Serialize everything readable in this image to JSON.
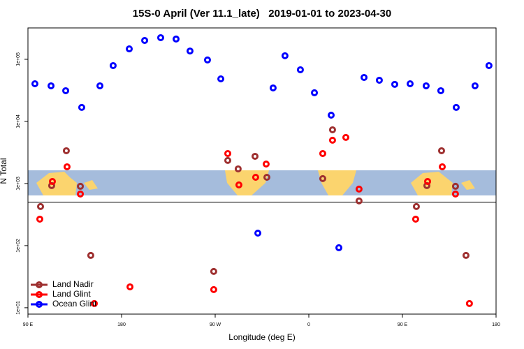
{
  "chart_data": {
    "type": "scatter",
    "title": "15S-0 April (Ver 11.1_late)   2019-01-01 to 2023-04-30",
    "x_label": "Longitude (deg E)",
    "y_label": "N Total",
    "xlim": [
      90,
      540
    ],
    "xticks": [
      {
        "value": 90,
        "label": "90 E"
      },
      180,
      {
        "value": 270,
        "label": "90 W"
      },
      {
        "value": 360,
        "label": "0"
      },
      {
        "value": 450,
        "label": "90 E"
      },
      {
        "value": 540,
        "label": "180"
      }
    ],
    "ylim": [
      7.9,
      320000
    ],
    "yticks": [
      {
        "value": 10,
        "label": "1e+01"
      },
      {
        "value": 100,
        "label": "1e+02"
      },
      {
        "value": 1000,
        "label": "1e+03"
      },
      {
        "value": 10000,
        "label": "1e+04"
      },
      {
        "value": 100000,
        "label": "1e+05"
      }
    ],
    "log_y": true,
    "hline": 500,
    "legend": "bottom-left",
    "series": [
      {
        "name": "Land Nadir",
        "color": "#9e3030",
        "x": [
          102.1,
          112.8,
          126.9,
          140.4,
          150.4,
          268.6,
          282.1,
          292.1,
          308.3,
          319.7,
          373.4,
          382.8,
          408.3,
          463.4,
          473.5,
          487.6,
          501,
          511.1
        ],
        "values": [
          426,
          925,
          3370,
          902,
          69.6,
          38.4,
          2350,
          1720,
          2740,
          1260,
          1200,
          7330,
          524,
          426,
          925,
          3370,
          902,
          69.6
        ]
      },
      {
        "name": "Land Glint",
        "color": "#ff0000",
        "x": [
          101.4,
          113.5,
          127.6,
          140.4,
          153.8,
          188.1,
          268.6,
          282.1,
          292.8,
          308.9,
          319,
          373.4,
          382.8,
          395.6,
          408.3,
          462.7,
          474.2,
          488.3,
          501,
          514.4
        ],
        "values": [
          267,
          1080,
          1860,
          678,
          11.7,
          21.7,
          19.6,
          3040,
          950,
          1260,
          2060,
          3040,
          4980,
          5520,
          813,
          267,
          1080,
          1860,
          678,
          11.7
        ]
      },
      {
        "name": "Ocean Glint",
        "color": "#0000ff",
        "x": [
          96.7,
          112.2,
          126.3,
          141.7,
          159.2,
          171.9,
          187.4,
          202.2,
          217.6,
          232.4,
          245.8,
          262.6,
          275.4,
          311,
          325.7,
          337.1,
          351.9,
          365.4,
          381.5,
          388.9,
          413.1,
          427.8,
          442.6,
          457.4,
          472.8,
          486.9,
          501.7,
          519.8,
          533.2
        ],
        "values": [
          40400,
          37400,
          31200,
          16800,
          37400,
          79200,
          147000,
          201000,
          223000,
          212000,
          136000,
          97500,
          48400,
          159,
          34600,
          114000,
          67800,
          28900,
          12600,
          92.5,
          51000,
          46000,
          39500,
          40400,
          37400,
          31200,
          16800,
          37400,
          79200
        ]
      }
    ]
  }
}
